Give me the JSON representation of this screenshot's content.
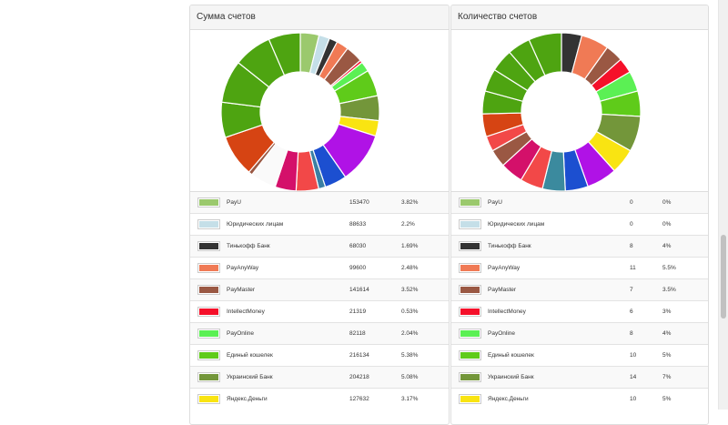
{
  "panels": [
    {
      "title": "Сумма счетов",
      "rows": [
        {
          "name": "PayU",
          "value": "153470",
          "percent": "3.82%",
          "color": "#9bc96d"
        },
        {
          "name": "Юридических лицам",
          "value": "88633",
          "percent": "2.2%",
          "color": "#c5dfe8"
        },
        {
          "name": "Тинькофф Банк",
          "value": "68030",
          "percent": "1.69%",
          "color": "#333333"
        },
        {
          "name": "PayAnyWay",
          "value": "99600",
          "percent": "2.48%",
          "color": "#f07a55"
        },
        {
          "name": "PayMaster",
          "value": "141614",
          "percent": "3.52%",
          "color": "#9a5843"
        },
        {
          "name": "IntellectMoney",
          "value": "21319",
          "percent": "0.53%",
          "color": "#f5102a"
        },
        {
          "name": "PayOnline",
          "value": "82118",
          "percent": "2.04%",
          "color": "#5bf054"
        },
        {
          "name": "Единый кошелек",
          "value": "216134",
          "percent": "5.38%",
          "color": "#5fcb1a"
        },
        {
          "name": "Украинский Банк",
          "value": "204218",
          "percent": "5.08%",
          "color": "#73963a"
        },
        {
          "name": "Яндекс.Деньги",
          "value": "127632",
          "percent": "3.17%",
          "color": "#f9e412"
        }
      ],
      "chart_data": {
        "type": "pie",
        "labels": [
          "PayU",
          "Юридических лицам",
          "Тинькофф Банк",
          "PayAnyWay",
          "PayMaster",
          "IntellectMoney",
          "PayOnline",
          "Единый кошелек",
          "Украинский Банк",
          "Яндекс.Деньги",
          "",
          "",
          "",
          "",
          "",
          "",
          "",
          "",
          "",
          "",
          "",
          ""
        ],
        "values": [
          3.82,
          2.2,
          1.69,
          2.48,
          3.52,
          0.53,
          2.04,
          5.38,
          5.08,
          3.17,
          10.4,
          4.5,
          1.4,
          4.6,
          4.3,
          5.3,
          0.8,
          8.5,
          7.2,
          8.7,
          7.8,
          6.5
        ],
        "colors": [
          "#9bc96d",
          "#c5dfe8",
          "#333333",
          "#f07a55",
          "#9a5843",
          "#f5102a",
          "#5bf054",
          "#5fcb1a",
          "#73963a",
          "#f9e412",
          "#b012e6",
          "#1c4fd0",
          "#3b7fa3",
          "#f24848",
          "#d4106a",
          "#fafafa",
          "#9a5843",
          "#d64413",
          "#4ea411",
          "#4ea411",
          "#4ea411",
          "#4ea411"
        ]
      }
    },
    {
      "title": "Количество счетов",
      "rows": [
        {
          "name": "PayU",
          "value": "0",
          "percent": "0%",
          "color": "#9bc96d"
        },
        {
          "name": "Юридических лицам",
          "value": "0",
          "percent": "0%",
          "color": "#c5dfe8"
        },
        {
          "name": "Тинькофф Банк",
          "value": "8",
          "percent": "4%",
          "color": "#333333"
        },
        {
          "name": "PayAnyWay",
          "value": "11",
          "percent": "5.5%",
          "color": "#f07a55"
        },
        {
          "name": "PayMaster",
          "value": "7",
          "percent": "3.5%",
          "color": "#9a5843"
        },
        {
          "name": "IntellectMoney",
          "value": "6",
          "percent": "3%",
          "color": "#f5102a"
        },
        {
          "name": "PayOnline",
          "value": "8",
          "percent": "4%",
          "color": "#5bf054"
        },
        {
          "name": "Единый кошелек",
          "value": "10",
          "percent": "5%",
          "color": "#5fcb1a"
        },
        {
          "name": "Украинский Банк",
          "value": "14",
          "percent": "7%",
          "color": "#73963a"
        },
        {
          "name": "Яндекс.Деньги",
          "value": "10",
          "percent": "5%",
          "color": "#f9e412"
        }
      ],
      "chart_data": {
        "type": "pie",
        "labels": [
          "PayU",
          "Юридических лицам",
          "Тинькофф Банк",
          "PayAnyWay",
          "PayMaster",
          "IntellectMoney",
          "PayOnline",
          "Единый кошелек",
          "Украинский Банк",
          "Яндекс.Деньги",
          "",
          "",
          "",
          "",
          "",
          "",
          "",
          "",
          "",
          "",
          "",
          "",
          ""
        ],
        "values": [
          0,
          0,
          4,
          5.5,
          3.5,
          3,
          4,
          5,
          7,
          5,
          6,
          4.5,
          4.5,
          4.5,
          4.5,
          3.5,
          3,
          4.5,
          4.5,
          4.5,
          4.5,
          4.5,
          6.5
        ],
        "colors": [
          "#9bc96d",
          "#c5dfe8",
          "#333333",
          "#f07a55",
          "#9a5843",
          "#f5102a",
          "#5bf054",
          "#5fcb1a",
          "#73963a",
          "#f9e412",
          "#b012e6",
          "#1c4fd0",
          "#3b8a9e",
          "#f24848",
          "#d4106a",
          "#9a5843",
          "#f24848",
          "#d64413",
          "#4ea411",
          "#4ea411",
          "#4ea411",
          "#4ea411",
          "#4ea411"
        ]
      }
    }
  ]
}
